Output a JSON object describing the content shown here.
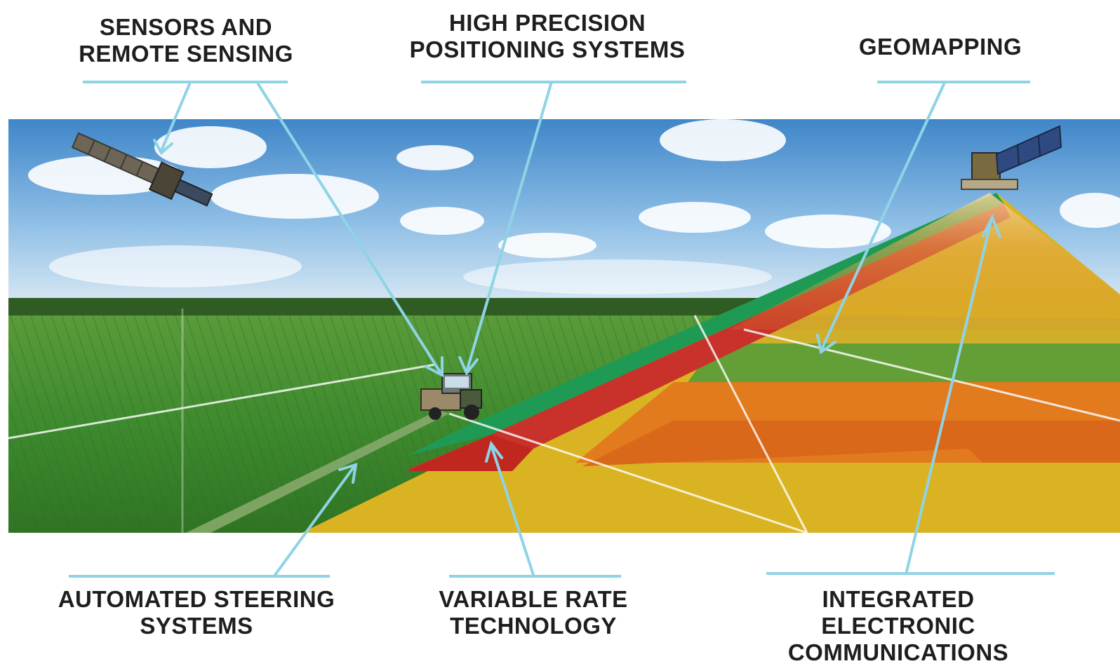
{
  "labels": {
    "sensors": {
      "line1": "SENSORS AND",
      "line2": "REMOTE SENSING"
    },
    "positioning": {
      "line1": "HIGH PRECISION",
      "line2": "POSITIONING SYSTEMS"
    },
    "geomapping": {
      "line1": "GEOMAPPING"
    },
    "steering": {
      "line1": "AUTOMATED STEERING",
      "line2": "SYSTEMS"
    },
    "variable_rate": {
      "line1": "VARIABLE RATE",
      "line2": "TECHNOLOGY"
    },
    "communications": {
      "line1": "INTEGRATED ELECTRONIC",
      "line2": "COMMUNICATIONS"
    }
  },
  "colors": {
    "callout": "#8fd3e6",
    "sky_top": "#3f86c9",
    "field_green": "#3e8a2e",
    "zone_red": "#c8322a",
    "zone_orange": "#e27a1e",
    "zone_yellow": "#d9b322",
    "zone_green": "#1f9a55"
  }
}
